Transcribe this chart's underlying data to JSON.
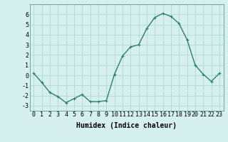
{
  "x": [
    0,
    1,
    2,
    3,
    4,
    5,
    6,
    7,
    8,
    9,
    10,
    11,
    12,
    13,
    14,
    15,
    16,
    17,
    18,
    19,
    20,
    21,
    22,
    23
  ],
  "y": [
    0.2,
    -0.7,
    -1.7,
    -2.1,
    -2.7,
    -2.3,
    -1.9,
    -2.6,
    -2.6,
    -2.5,
    0.1,
    1.9,
    2.8,
    3.0,
    4.6,
    5.7,
    6.1,
    5.8,
    5.1,
    3.5,
    1.0,
    0.1,
    -0.6,
    0.2
  ],
  "line_color": "#2e7d6e",
  "marker": "+",
  "marker_size": 3,
  "bg_color": "#d6f0f0",
  "grid_color": "#b0d8d8",
  "xlabel": "Humidex (Indice chaleur)",
  "xlabel_fontsize": 7,
  "tick_fontsize": 6,
  "ylim": [
    -3.5,
    7.0
  ],
  "xlim": [
    -0.5,
    23.5
  ],
  "yticks": [
    -3,
    -2,
    -1,
    0,
    1,
    2,
    3,
    4,
    5,
    6
  ],
  "xticks": [
    0,
    1,
    2,
    3,
    4,
    5,
    6,
    7,
    8,
    9,
    10,
    11,
    12,
    13,
    14,
    15,
    16,
    17,
    18,
    19,
    20,
    21,
    22,
    23
  ]
}
